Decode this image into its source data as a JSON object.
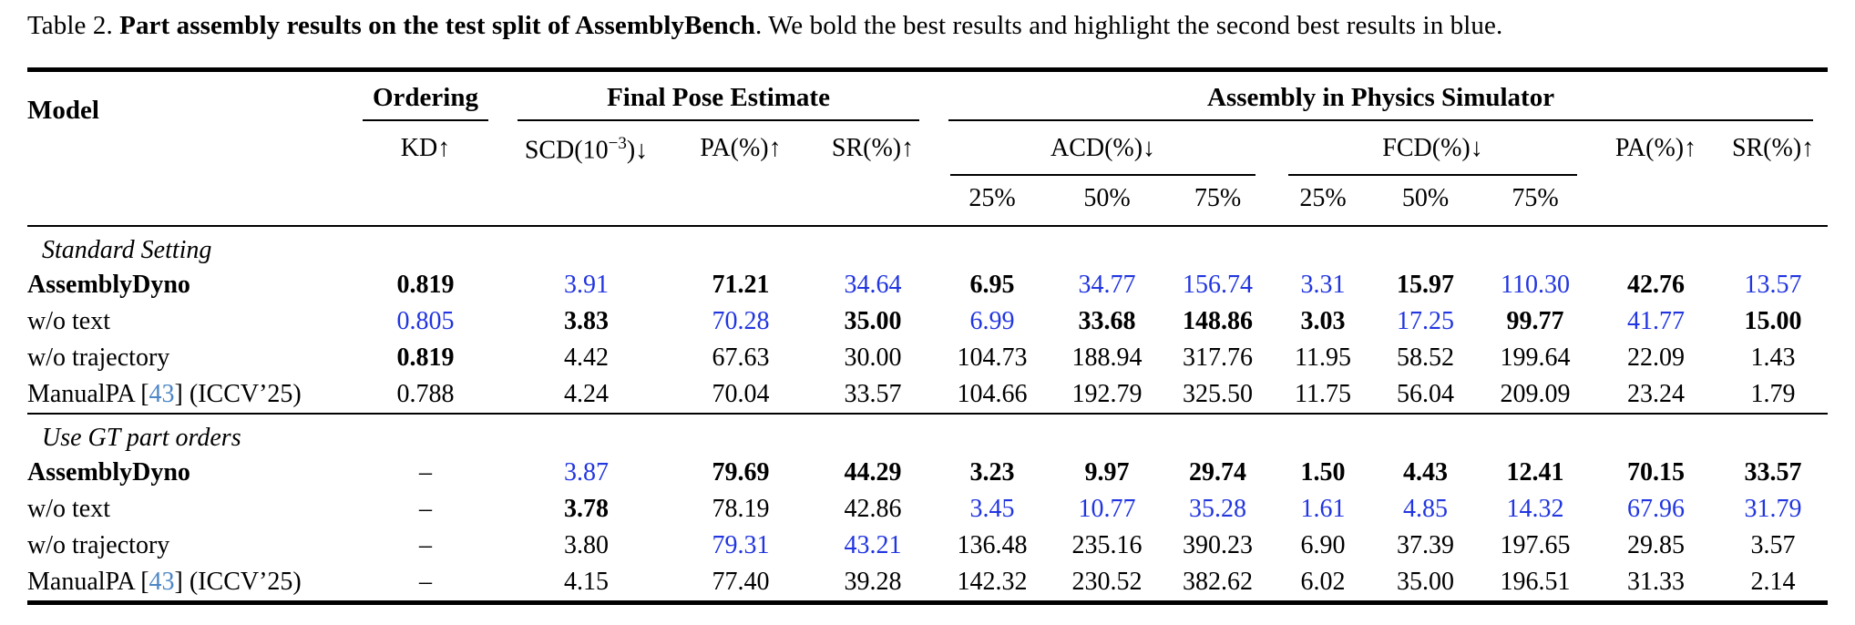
{
  "caption": {
    "prefix": "Table 2. ",
    "title_bold": "Part assembly results on the test split of AssemblyBench",
    "rest": ". We bold the best results and highlight the second best results in blue."
  },
  "colors": {
    "second_best_blue": "#2135e0",
    "citation_blue": "#4d86c6",
    "text_black": "#000000"
  },
  "table": {
    "header": {
      "model": "Model",
      "groups": {
        "ordering": "Ordering",
        "final_pose": "Final Pose Estimate",
        "physics": "Assembly in Physics Simulator"
      },
      "metrics": {
        "kd": "KD↑",
        "scd_pre": "SCD(10",
        "scd_sup": "−3",
        "scd_post": ")↓",
        "pa": "PA(%)↑",
        "sr": "SR(%)↑",
        "acd": "ACD(%)↓",
        "fcd": "FCD(%)↓"
      },
      "thresholds": [
        "25%",
        "50%",
        "75%"
      ]
    },
    "sections": [
      {
        "label": "Standard Setting",
        "rows": [
          {
            "model": "AssemblyDyno",
            "bold": true,
            "cells": [
              {
                "v": "0.819",
                "s": "bold"
              },
              {
                "v": "3.91",
                "s": "blue"
              },
              {
                "v": "71.21",
                "s": "bold"
              },
              {
                "v": "34.64",
                "s": "blue"
              },
              {
                "v": "6.95",
                "s": "bold"
              },
              {
                "v": "34.77",
                "s": "blue"
              },
              {
                "v": "156.74",
                "s": "blue"
              },
              {
                "v": "3.31",
                "s": "blue"
              },
              {
                "v": "15.97",
                "s": "bold"
              },
              {
                "v": "110.30",
                "s": "blue"
              },
              {
                "v": "42.76",
                "s": "bold"
              },
              {
                "v": "13.57",
                "s": "blue"
              }
            ]
          },
          {
            "model": "w/o text",
            "bold": false,
            "cells": [
              {
                "v": "0.805",
                "s": "blue"
              },
              {
                "v": "3.83",
                "s": "bold"
              },
              {
                "v": "70.28",
                "s": "blue"
              },
              {
                "v": "35.00",
                "s": "bold"
              },
              {
                "v": "6.99",
                "s": "blue"
              },
              {
                "v": "33.68",
                "s": "bold"
              },
              {
                "v": "148.86",
                "s": "bold"
              },
              {
                "v": "3.03",
                "s": "bold"
              },
              {
                "v": "17.25",
                "s": "blue"
              },
              {
                "v": "99.77",
                "s": "bold"
              },
              {
                "v": "41.77",
                "s": "blue"
              },
              {
                "v": "15.00",
                "s": "bold"
              }
            ]
          },
          {
            "model": "w/o trajectory",
            "bold": false,
            "cells": [
              {
                "v": "0.819",
                "s": "bold"
              },
              {
                "v": "4.42",
                "s": ""
              },
              {
                "v": "67.63",
                "s": ""
              },
              {
                "v": "30.00",
                "s": ""
              },
              {
                "v": "104.73",
                "s": ""
              },
              {
                "v": "188.94",
                "s": ""
              },
              {
                "v": "317.76",
                "s": ""
              },
              {
                "v": "11.95",
                "s": ""
              },
              {
                "v": "58.52",
                "s": ""
              },
              {
                "v": "199.64",
                "s": ""
              },
              {
                "v": "22.09",
                "s": ""
              },
              {
                "v": "1.43",
                "s": ""
              }
            ]
          },
          {
            "model_parts": [
              {
                "t": "ManualPA ["
              },
              {
                "t": "43",
                "c": "cite"
              },
              {
                "t": "] (ICCV’25)"
              }
            ],
            "bold": false,
            "cells": [
              {
                "v": "0.788",
                "s": ""
              },
              {
                "v": "4.24",
                "s": ""
              },
              {
                "v": "70.04",
                "s": ""
              },
              {
                "v": "33.57",
                "s": ""
              },
              {
                "v": "104.66",
                "s": ""
              },
              {
                "v": "192.79",
                "s": ""
              },
              {
                "v": "325.50",
                "s": ""
              },
              {
                "v": "11.75",
                "s": ""
              },
              {
                "v": "56.04",
                "s": ""
              },
              {
                "v": "209.09",
                "s": ""
              },
              {
                "v": "23.24",
                "s": ""
              },
              {
                "v": "1.79",
                "s": ""
              }
            ]
          }
        ]
      },
      {
        "label": "Use GT part orders",
        "rows": [
          {
            "model": "AssemblyDyno",
            "bold": true,
            "cells": [
              {
                "v": "–",
                "s": ""
              },
              {
                "v": "3.87",
                "s": "blue"
              },
              {
                "v": "79.69",
                "s": "bold"
              },
              {
                "v": "44.29",
                "s": "bold"
              },
              {
                "v": "3.23",
                "s": "bold"
              },
              {
                "v": "9.97",
                "s": "bold"
              },
              {
                "v": "29.74",
                "s": "bold"
              },
              {
                "v": "1.50",
                "s": "bold"
              },
              {
                "v": "4.43",
                "s": "bold"
              },
              {
                "v": "12.41",
                "s": "bold"
              },
              {
                "v": "70.15",
                "s": "bold"
              },
              {
                "v": "33.57",
                "s": "bold"
              }
            ]
          },
          {
            "model": "w/o text",
            "bold": false,
            "cells": [
              {
                "v": "–",
                "s": ""
              },
              {
                "v": "3.78",
                "s": "bold"
              },
              {
                "v": "78.19",
                "s": ""
              },
              {
                "v": "42.86",
                "s": ""
              },
              {
                "v": "3.45",
                "s": "blue"
              },
              {
                "v": "10.77",
                "s": "blue"
              },
              {
                "v": "35.28",
                "s": "blue"
              },
              {
                "v": "1.61",
                "s": "blue"
              },
              {
                "v": "4.85",
                "s": "blue"
              },
              {
                "v": "14.32",
                "s": "blue"
              },
              {
                "v": "67.96",
                "s": "blue"
              },
              {
                "v": "31.79",
                "s": "blue"
              }
            ]
          },
          {
            "model": "w/o trajectory",
            "bold": false,
            "cells": [
              {
                "v": "–",
                "s": ""
              },
              {
                "v": "3.80",
                "s": ""
              },
              {
                "v": "79.31",
                "s": "blue"
              },
              {
                "v": "43.21",
                "s": "blue"
              },
              {
                "v": "136.48",
                "s": ""
              },
              {
                "v": "235.16",
                "s": ""
              },
              {
                "v": "390.23",
                "s": ""
              },
              {
                "v": "6.90",
                "s": ""
              },
              {
                "v": "37.39",
                "s": ""
              },
              {
                "v": "197.65",
                "s": ""
              },
              {
                "v": "29.85",
                "s": ""
              },
              {
                "v": "3.57",
                "s": ""
              }
            ]
          },
          {
            "model_parts": [
              {
                "t": "ManualPA ["
              },
              {
                "t": "43",
                "c": "cite"
              },
              {
                "t": "] (ICCV’25)"
              }
            ],
            "bold": false,
            "cells": [
              {
                "v": "–",
                "s": ""
              },
              {
                "v": "4.15",
                "s": ""
              },
              {
                "v": "77.40",
                "s": ""
              },
              {
                "v": "39.28",
                "s": ""
              },
              {
                "v": "142.32",
                "s": ""
              },
              {
                "v": "230.52",
                "s": ""
              },
              {
                "v": "382.62",
                "s": ""
              },
              {
                "v": "6.02",
                "s": ""
              },
              {
                "v": "35.00",
                "s": ""
              },
              {
                "v": "196.51",
                "s": ""
              },
              {
                "v": "31.33",
                "s": ""
              },
              {
                "v": "2.14",
                "s": ""
              }
            ]
          }
        ]
      }
    ]
  }
}
